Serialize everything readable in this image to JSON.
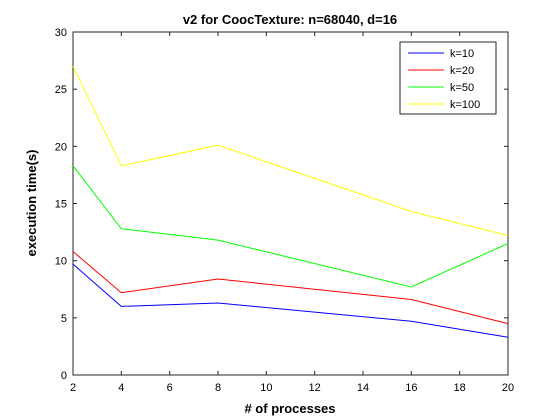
{
  "chart_data": {
    "type": "line",
    "title": "v2 for CoocTexture: n=68040, d=16",
    "xlabel": "# of processes",
    "ylabel": "execution time(s)",
    "x": [
      2,
      4,
      8,
      16,
      20
    ],
    "xlim": [
      2,
      20
    ],
    "ylim": [
      0,
      30
    ],
    "xticks": [
      "2",
      "4",
      "6",
      "8",
      "10",
      "12",
      "14",
      "16",
      "18",
      "20"
    ],
    "yticks": [
      "0",
      "5",
      "10",
      "15",
      "20",
      "25",
      "30"
    ],
    "grid": false,
    "legend_position": "top-right",
    "series": [
      {
        "name": "k=10",
        "color": "#0000ff",
        "values": [
          9.7,
          6.0,
          6.3,
          4.7,
          3.3
        ]
      },
      {
        "name": "k=20",
        "color": "#ff0000",
        "values": [
          10.8,
          7.2,
          8.4,
          6.6,
          4.5
        ]
      },
      {
        "name": "k=50",
        "color": "#00ff00",
        "values": [
          18.3,
          12.8,
          11.8,
          7.7,
          11.5
        ]
      },
      {
        "name": "k=100",
        "color": "#ffff00",
        "values": [
          27.0,
          18.3,
          20.1,
          14.3,
          12.2
        ]
      }
    ]
  }
}
